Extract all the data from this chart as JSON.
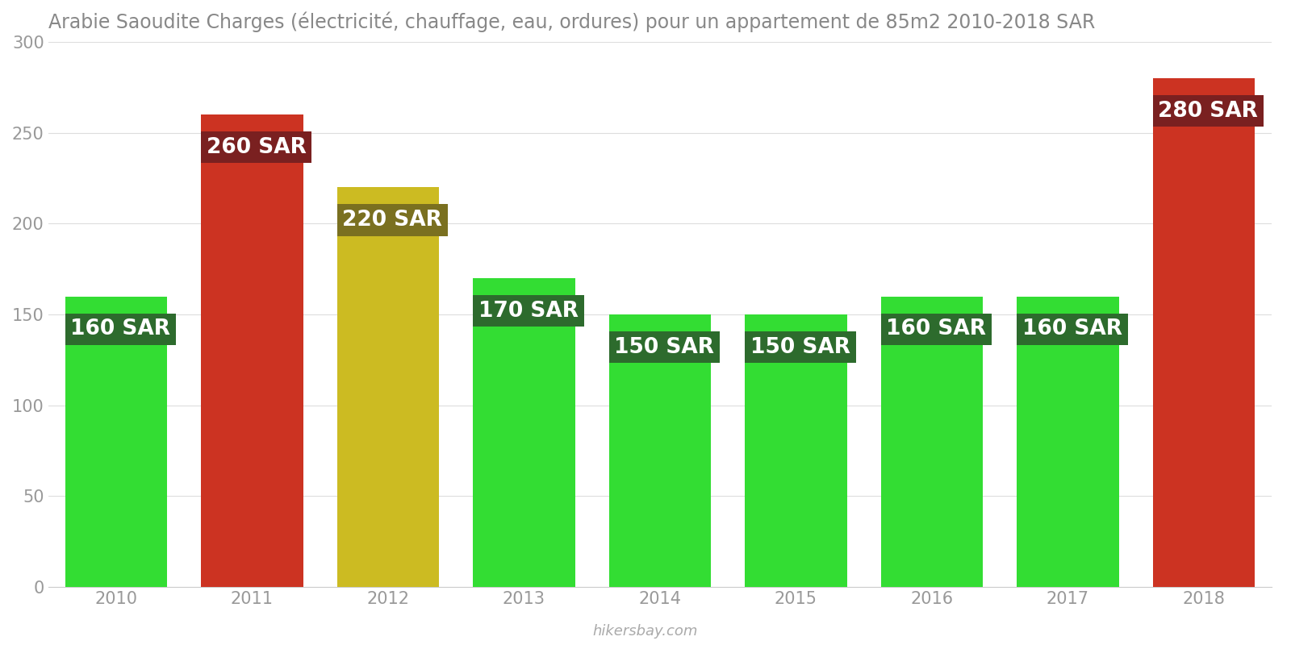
{
  "years": [
    2010,
    2011,
    2012,
    2013,
    2014,
    2015,
    2016,
    2017,
    2018
  ],
  "values": [
    160,
    260,
    220,
    170,
    150,
    150,
    160,
    160,
    280
  ],
  "bar_colors": [
    "#33dd33",
    "#cc3322",
    "#ccbb22",
    "#33dd33",
    "#33dd33",
    "#33dd33",
    "#33dd33",
    "#33dd33",
    "#cc3322"
  ],
  "label_bg_colors": [
    "#2d6b2d",
    "#7a2020",
    "#7a7020",
    "#2d6b2d",
    "#2d6b2d",
    "#2d6b2d",
    "#2d6b2d",
    "#2d6b2d",
    "#7a2020"
  ],
  "label_texts": [
    "160 SAR",
    "260 SAR",
    "220 SAR",
    "170 SAR",
    "150 SAR",
    "150 SAR",
    "160 SAR",
    "160 SAR",
    "280 SAR"
  ],
  "title": "Arabie Saoudite Charges (électricité, chauffage, eau, ordures) pour un appartement de 85m2 2010-2018 SAR",
  "ylim": [
    0,
    300
  ],
  "yticks": [
    0,
    50,
    100,
    150,
    200,
    250,
    300
  ],
  "label_text_color": "#ffffff",
  "label_fontsize": 19,
  "title_fontsize": 17,
  "tick_fontsize": 15,
  "watermark": "hikersbay.com",
  "background_color": "#ffffff",
  "grid_color": "#dddddd",
  "bar_width": 0.75
}
